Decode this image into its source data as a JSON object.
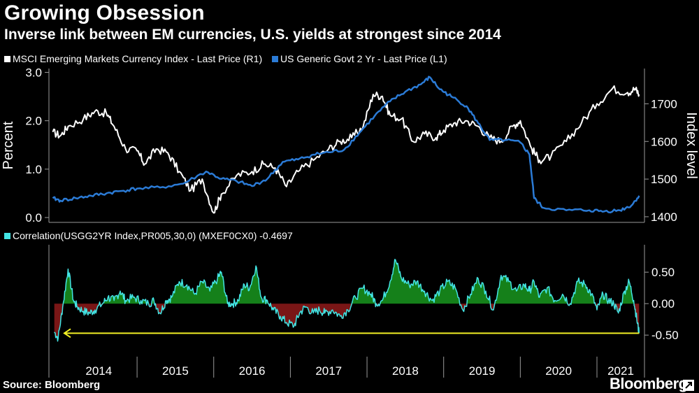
{
  "title": "Growing Obsession",
  "subtitle": "Inverse link between EM currencies, U.S. yields at strongest since 2014",
  "source": "Source: Bloomberg",
  "brand": "Bloomberg",
  "colors": {
    "msci": "#ffffff",
    "ust2y": "#2b7bd6",
    "corr_line": "#43e5e5",
    "corr_pos": "#15801a",
    "corr_neg": "#7a1616",
    "arrow": "#f2ef24"
  },
  "chart_data": [
    {
      "type": "line",
      "title": "Growing Obsession",
      "ylabel_left": "Percent",
      "ylabel_right": "Index level",
      "ylim_left": [
        -0.1,
        3.05
      ],
      "ylim_right": [
        1385,
        1790
      ],
      "yticks_left": [
        "3.0",
        "2.0",
        "1.0",
        "0.0"
      ],
      "yticks_right": [
        "1700",
        "1600",
        "1500",
        "1400"
      ],
      "series": [
        {
          "name": "MSCI Emerging Markets Currency Index - Last Price (R1)",
          "axis": "right",
          "points": [
            [
              2013.9,
              1625
            ],
            [
              2014.0,
              1615
            ],
            [
              2014.1,
              1640
            ],
            [
              2014.3,
              1660
            ],
            [
              2014.45,
              1680
            ],
            [
              2014.6,
              1675
            ],
            [
              2014.7,
              1640
            ],
            [
              2014.85,
              1580
            ],
            [
              2015.0,
              1575
            ],
            [
              2015.1,
              1540
            ],
            [
              2015.25,
              1580
            ],
            [
              2015.4,
              1570
            ],
            [
              2015.55,
              1520
            ],
            [
              2015.7,
              1470
            ],
            [
              2015.85,
              1500
            ],
            [
              2016.0,
              1410
            ],
            [
              2016.1,
              1460
            ],
            [
              2016.3,
              1510
            ],
            [
              2016.5,
              1520
            ],
            [
              2016.65,
              1540
            ],
            [
              2016.8,
              1530
            ],
            [
              2016.95,
              1480
            ],
            [
              2017.1,
              1520
            ],
            [
              2017.3,
              1550
            ],
            [
              2017.5,
              1580
            ],
            [
              2017.65,
              1600
            ],
            [
              2017.8,
              1610
            ],
            [
              2017.95,
              1640
            ],
            [
              2018.08,
              1725
            ],
            [
              2018.2,
              1720
            ],
            [
              2018.3,
              1670
            ],
            [
              2018.45,
              1660
            ],
            [
              2018.6,
              1600
            ],
            [
              2018.75,
              1620
            ],
            [
              2018.9,
              1610
            ],
            [
              2019.0,
              1630
            ],
            [
              2019.15,
              1650
            ],
            [
              2019.3,
              1655
            ],
            [
              2019.45,
              1640
            ],
            [
              2019.6,
              1610
            ],
            [
              2019.75,
              1600
            ],
            [
              2019.9,
              1640
            ],
            [
              2020.0,
              1655
            ],
            [
              2020.15,
              1580
            ],
            [
              2020.25,
              1550
            ],
            [
              2020.4,
              1560
            ],
            [
              2020.6,
              1600
            ],
            [
              2020.8,
              1650
            ],
            [
              2021.0,
              1700
            ],
            [
              2021.2,
              1740
            ],
            [
              2021.4,
              1730
            ],
            [
              2021.5,
              1740
            ],
            [
              2021.55,
              1725
            ]
          ]
        },
        {
          "name": "US Generic Govt 2 Yr - Last Price (L1)",
          "axis": "left",
          "points": [
            [
              2013.9,
              0.4
            ],
            [
              2014.0,
              0.35
            ],
            [
              2014.2,
              0.4
            ],
            [
              2014.4,
              0.45
            ],
            [
              2014.6,
              0.5
            ],
            [
              2014.8,
              0.55
            ],
            [
              2015.0,
              0.6
            ],
            [
              2015.3,
              0.62
            ],
            [
              2015.6,
              0.7
            ],
            [
              2015.9,
              0.95
            ],
            [
              2016.1,
              0.8
            ],
            [
              2016.3,
              0.75
            ],
            [
              2016.5,
              0.65
            ],
            [
              2016.7,
              0.8
            ],
            [
              2016.9,
              1.15
            ],
            [
              2017.1,
              1.2
            ],
            [
              2017.3,
              1.3
            ],
            [
              2017.5,
              1.35
            ],
            [
              2017.7,
              1.4
            ],
            [
              2017.9,
              1.75
            ],
            [
              2018.1,
              2.1
            ],
            [
              2018.3,
              2.4
            ],
            [
              2018.5,
              2.6
            ],
            [
              2018.7,
              2.75
            ],
            [
              2018.82,
              2.9
            ],
            [
              2018.95,
              2.65
            ],
            [
              2019.1,
              2.5
            ],
            [
              2019.3,
              2.3
            ],
            [
              2019.45,
              1.95
            ],
            [
              2019.6,
              1.6
            ],
            [
              2019.8,
              1.6
            ],
            [
              2020.0,
              1.55
            ],
            [
              2020.12,
              1.3
            ],
            [
              2020.18,
              0.4
            ],
            [
              2020.3,
              0.2
            ],
            [
              2020.6,
              0.15
            ],
            [
              2020.9,
              0.15
            ],
            [
              2021.1,
              0.13
            ],
            [
              2021.3,
              0.15
            ],
            [
              2021.45,
              0.25
            ],
            [
              2021.55,
              0.45
            ]
          ]
        }
      ]
    },
    {
      "type": "area",
      "legend": "Correlation(USGG2YR Index,PR005,30,0) (MXEF0CX0) -0.4697",
      "ylim": [
        -0.62,
        0.88
      ],
      "yticks": [
        "0.50",
        "0.00",
        "-0.50"
      ],
      "x_categories": [
        "2014",
        "2015",
        "2016",
        "2017",
        "2018",
        "2019",
        "2020",
        "2021"
      ],
      "latest_value": -0.4697,
      "points": [
        [
          2013.92,
          -0.45
        ],
        [
          2013.97,
          -0.55
        ],
        [
          2014.03,
          -0.05
        ],
        [
          2014.1,
          0.55
        ],
        [
          2014.17,
          0.05
        ],
        [
          2014.22,
          -0.05
        ],
        [
          2014.3,
          -0.12
        ],
        [
          2014.38,
          -0.15
        ],
        [
          2014.45,
          -0.1
        ],
        [
          2014.55,
          0.0
        ],
        [
          2014.62,
          0.1
        ],
        [
          2014.7,
          0.05
        ],
        [
          2014.78,
          0.2
        ],
        [
          2014.85,
          0.05
        ],
        [
          2014.95,
          0.1
        ],
        [
          2015.05,
          0.05
        ],
        [
          2015.15,
          0.0
        ],
        [
          2015.22,
          0.05
        ],
        [
          2015.3,
          -0.15
        ],
        [
          2015.38,
          0.05
        ],
        [
          2015.45,
          0.1
        ],
        [
          2015.55,
          0.35
        ],
        [
          2015.65,
          0.3
        ],
        [
          2015.75,
          0.15
        ],
        [
          2015.85,
          0.35
        ],
        [
          2015.95,
          0.2
        ],
        [
          2016.05,
          0.4
        ],
        [
          2016.1,
          0.5
        ],
        [
          2016.18,
          0.0
        ],
        [
          2016.25,
          0.0
        ],
        [
          2016.32,
          0.05
        ],
        [
          2016.4,
          0.3
        ],
        [
          2016.47,
          0.25
        ],
        [
          2016.55,
          0.6
        ],
        [
          2016.62,
          0.1
        ],
        [
          2016.7,
          0.05
        ],
        [
          2016.78,
          -0.1
        ],
        [
          2016.87,
          -0.2
        ],
        [
          2016.95,
          -0.3
        ],
        [
          2017.05,
          -0.35
        ],
        [
          2017.12,
          -0.15
        ],
        [
          2017.2,
          -0.05
        ],
        [
          2017.3,
          -0.15
        ],
        [
          2017.38,
          -0.1
        ],
        [
          2017.45,
          -0.15
        ],
        [
          2017.55,
          -0.1
        ],
        [
          2017.65,
          -0.2
        ],
        [
          2017.75,
          -0.1
        ],
        [
          2017.85,
          0.1
        ],
        [
          2017.95,
          0.25
        ],
        [
          2018.05,
          0.15
        ],
        [
          2018.12,
          0.0
        ],
        [
          2018.2,
          0.05
        ],
        [
          2018.3,
          0.35
        ],
        [
          2018.37,
          0.7
        ],
        [
          2018.45,
          0.4
        ],
        [
          2018.55,
          0.3
        ],
        [
          2018.65,
          0.35
        ],
        [
          2018.75,
          0.2
        ],
        [
          2018.85,
          0.05
        ],
        [
          2018.95,
          0.2
        ],
        [
          2019.05,
          0.35
        ],
        [
          2019.15,
          0.25
        ],
        [
          2019.25,
          -0.1
        ],
        [
          2019.35,
          0.15
        ],
        [
          2019.45,
          0.4
        ],
        [
          2019.55,
          0.2
        ],
        [
          2019.65,
          -0.1
        ],
        [
          2019.75,
          0.45
        ],
        [
          2019.85,
          0.35
        ],
        [
          2019.95,
          0.2
        ],
        [
          2020.05,
          0.3
        ],
        [
          2020.12,
          0.2
        ],
        [
          2020.18,
          0.35
        ],
        [
          2020.25,
          0.1
        ],
        [
          2020.35,
          0.25
        ],
        [
          2020.45,
          0.05
        ],
        [
          2020.55,
          0.15
        ],
        [
          2020.65,
          0.0
        ],
        [
          2020.75,
          0.35
        ],
        [
          2020.85,
          0.3
        ],
        [
          2020.93,
          0.15
        ],
        [
          2021.0,
          -0.1
        ],
        [
          2021.08,
          0.15
        ],
        [
          2021.15,
          0.05
        ],
        [
          2021.22,
          0.0
        ],
        [
          2021.28,
          -0.15
        ],
        [
          2021.36,
          0.2
        ],
        [
          2021.42,
          0.35
        ],
        [
          2021.48,
          0.05
        ],
        [
          2021.52,
          -0.25
        ],
        [
          2021.55,
          -0.47
        ]
      ]
    }
  ]
}
